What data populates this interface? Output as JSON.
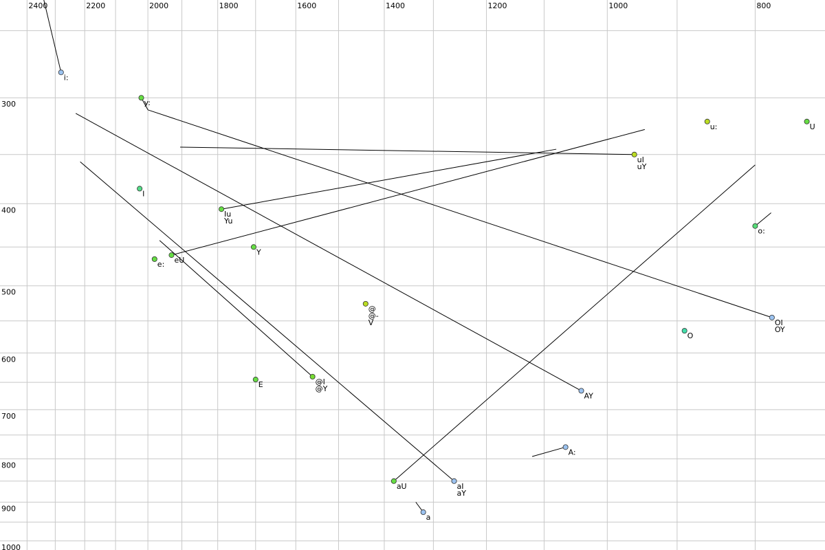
{
  "chart_data": {
    "type": "scatter",
    "log_x": true,
    "log_y": true,
    "grid": true,
    "xlim": [
      2500,
      720
    ],
    "ylim": [
      230,
      1025
    ],
    "xticks": [
      2400,
      2200,
      2000,
      1800,
      1600,
      1400,
      1200,
      1000,
      800
    ],
    "xminor": [
      2300,
      2100,
      1900,
      1700,
      1500,
      1300,
      1100,
      900
    ],
    "yticks": [
      300,
      400,
      500,
      600,
      700,
      800,
      900,
      1000
    ],
    "yminor": [
      250,
      350,
      450,
      550,
      650,
      750,
      850,
      950
    ],
    "points": [
      {
        "labels": [
          "i:"
        ],
        "f2": 2280,
        "f1": 280,
        "color": "#9cc3f0",
        "target": {
          "f2": 2340,
          "f1": 230
        }
      },
      {
        "labels": [
          "y:"
        ],
        "f2": 2020,
        "f1": 300,
        "color": "#66dd44",
        "target": {
          "f2": 2000,
          "f1": 310
        }
      },
      {
        "labels": [
          "I"
        ],
        "f2": 2025,
        "f1": 384,
        "color": "#55dd88"
      },
      {
        "labels": [
          "Iu",
          "Yu"
        ],
        "f2": 1790,
        "f1": 406,
        "color": "#66dd44",
        "target": {
          "f2": 1080,
          "f1": 345
        }
      },
      {
        "labels": [
          "e:"
        ],
        "f2": 1980,
        "f1": 465,
        "color": "#66dd44"
      },
      {
        "labels": [
          "eU"
        ],
        "f2": 1930,
        "f1": 460,
        "color": "#66dd44",
        "target": {
          "f2": 945,
          "f1": 327
        }
      },
      {
        "labels": [
          "Y"
        ],
        "f2": 1705,
        "f1": 450,
        "color": "#66dd44"
      },
      {
        "labels": [
          "E"
        ],
        "f2": 1700,
        "f1": 645,
        "color": "#66dd44"
      },
      {
        "labels": [
          "@I",
          "@Y"
        ],
        "f2": 1560,
        "f1": 640,
        "color": "#77dd33",
        "target": {
          "f2": 1965,
          "f1": 442
        }
      },
      {
        "labels": [
          "@",
          "@-",
          "V"
        ],
        "f2": 1440,
        "f1": 525,
        "color": "#bbdd22"
      },
      {
        "labels": [
          "aU"
        ],
        "f2": 1380,
        "f1": 850,
        "color": "#66dd44",
        "target": {
          "f2": 800,
          "f1": 360
        }
      },
      {
        "labels": [
          "aI",
          "aY"
        ],
        "f2": 1260,
        "f1": 850,
        "color": "#9cc3f0",
        "target": {
          "f2": 2215,
          "f1": 357
        }
      },
      {
        "labels": [
          "a"
        ],
        "f2": 1320,
        "f1": 925,
        "color": "#9cc3f0",
        "target": {
          "f2": 1335,
          "f1": 900
        }
      },
      {
        "labels": [
          "A:"
        ],
        "f2": 1065,
        "f1": 775,
        "color": "#9cc3f0",
        "target": {
          "f2": 1120,
          "f1": 795
        }
      },
      {
        "labels": [
          "AY"
        ],
        "f2": 1040,
        "f1": 665,
        "color": "#9cc3f0",
        "target": {
          "f2": 2230,
          "f1": 313
        }
      },
      {
        "labels": [
          "uI",
          "uY"
        ],
        "f2": 960,
        "f1": 350,
        "color": "#bbdd22",
        "target": {
          "f2": 1905,
          "f1": 343
        }
      },
      {
        "labels": [
          "u:"
        ],
        "f2": 860,
        "f1": 320,
        "color": "#bbdd22"
      },
      {
        "labels": [
          "U"
        ],
        "f2": 740,
        "f1": 320,
        "color": "#66dd44"
      },
      {
        "labels": [
          "o:"
        ],
        "f2": 800,
        "f1": 425,
        "color": "#55dd77",
        "target": {
          "f2": 781,
          "f1": 410
        }
      },
      {
        "labels": [
          "O"
        ],
        "f2": 890,
        "f1": 565,
        "color": "#44ddaa"
      },
      {
        "labels": [
          "OI",
          "OY"
        ],
        "f2": 780,
        "f1": 545,
        "color": "#9cc3f0",
        "target": {
          "f2": 2000,
          "f1": 310
        }
      }
    ]
  }
}
